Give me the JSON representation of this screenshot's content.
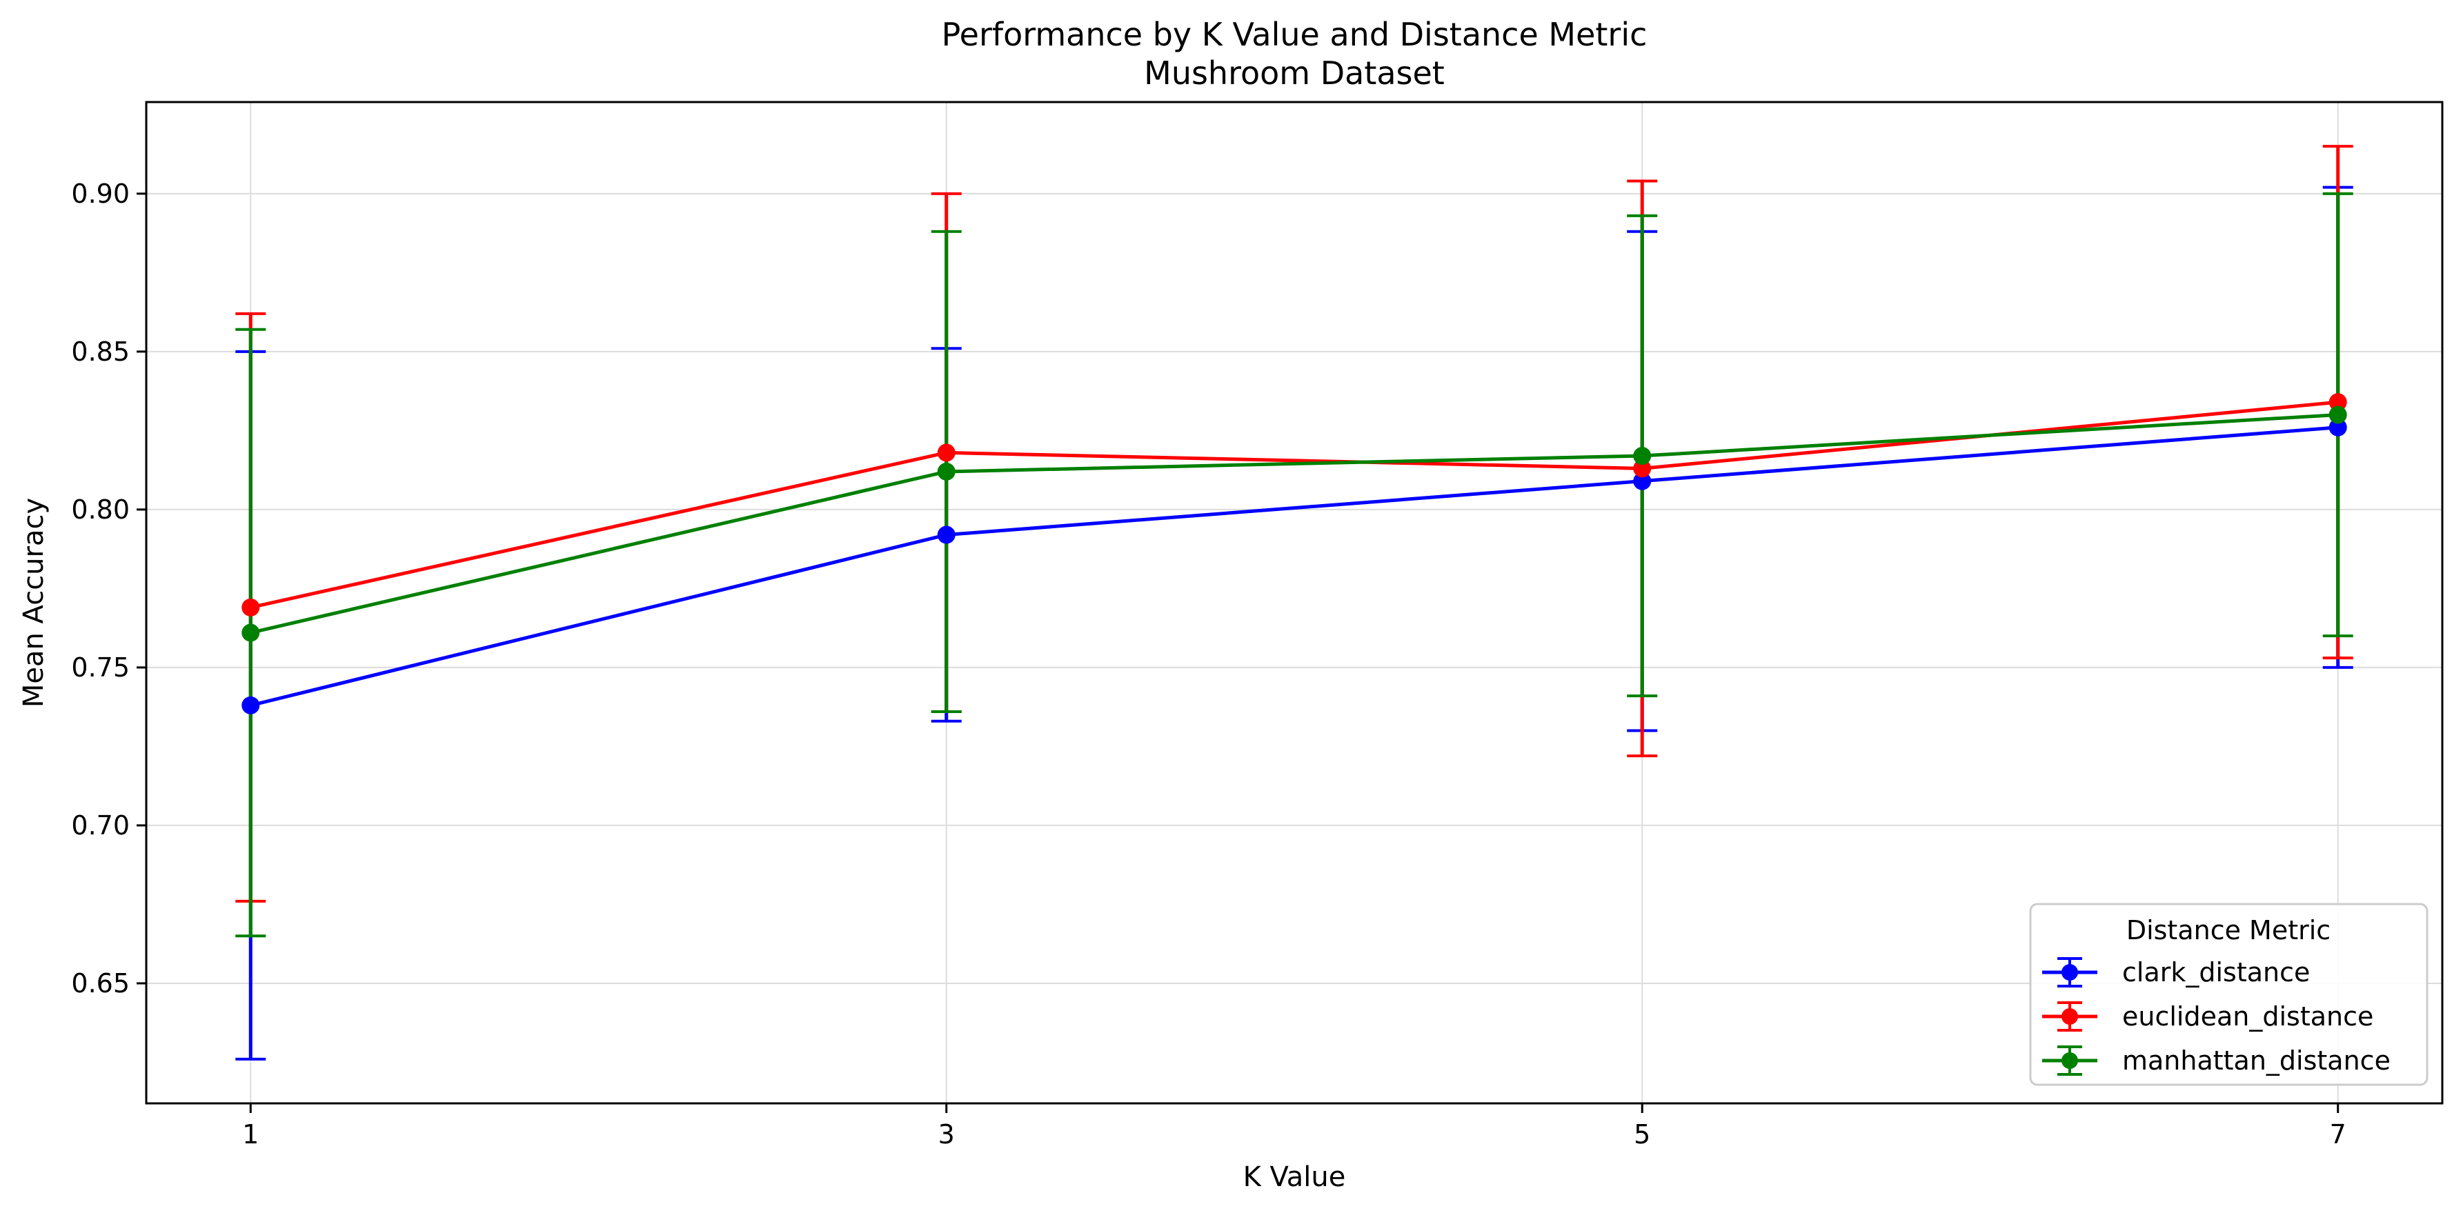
{
  "chart_data": {
    "type": "line",
    "title": "Performance by K Value and Distance Metric",
    "subtitle": "Mushroom Dataset",
    "xlabel": "K Value",
    "ylabel": "Mean Accuracy",
    "x": [
      1,
      3,
      5,
      7
    ],
    "x_tick_labels": [
      "1",
      "3",
      "5",
      "7"
    ],
    "xlim": [
      0.7,
      7.3
    ],
    "ylim": [
      0.612,
      0.929
    ],
    "y_ticks": [
      0.65,
      0.7,
      0.75,
      0.8,
      0.85,
      0.9
    ],
    "y_tick_labels": [
      "0.65",
      "0.70",
      "0.75",
      "0.80",
      "0.85",
      "0.90"
    ],
    "grid": true,
    "error_bars": true,
    "legend": {
      "title": "Distance Metric",
      "placement": "lower-right"
    },
    "series": [
      {
        "name": "clark_distance",
        "color": "#0000ff",
        "values": [
          0.738,
          0.792,
          0.809,
          0.826
        ],
        "errors": [
          0.112,
          0.059,
          0.079,
          0.076
        ]
      },
      {
        "name": "euclidean_distance",
        "color": "#ff0000",
        "values": [
          0.769,
          0.818,
          0.813,
          0.834
        ],
        "errors": [
          0.093,
          0.082,
          0.091,
          0.081
        ]
      },
      {
        "name": "manhattan_distance",
        "color": "#008000",
        "values": [
          0.761,
          0.812,
          0.817,
          0.83
        ],
        "errors": [
          0.096,
          0.076,
          0.076,
          0.07
        ]
      }
    ]
  }
}
